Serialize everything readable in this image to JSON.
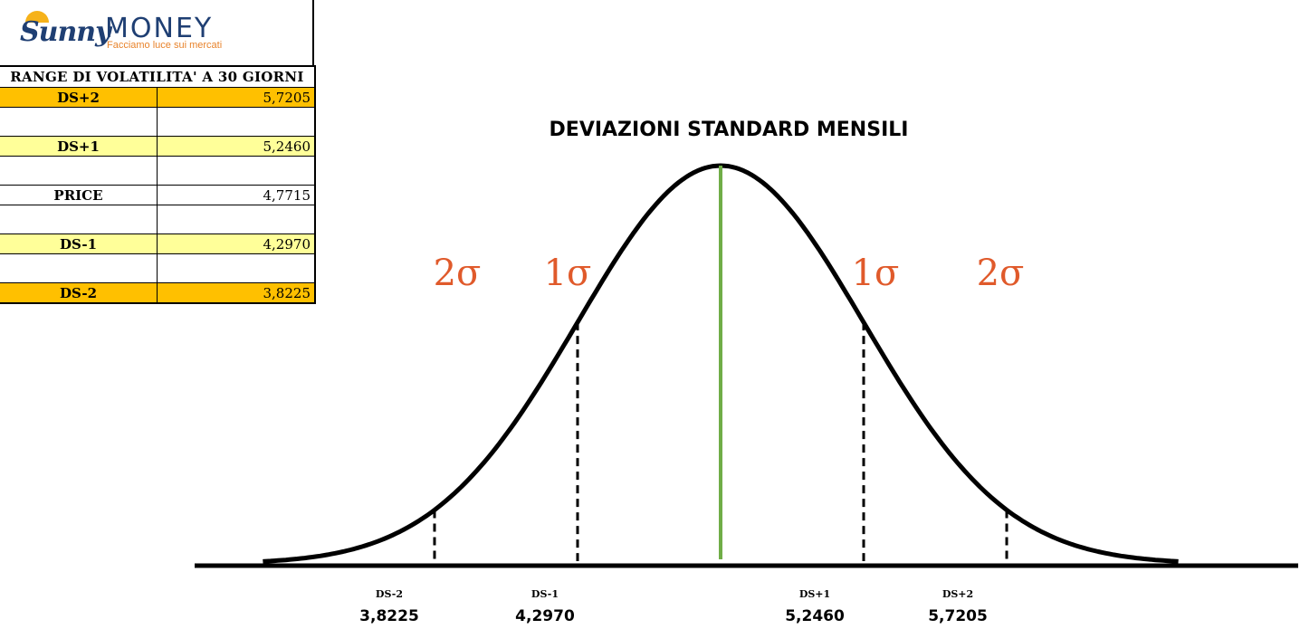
{
  "logo": {
    "word1": "Sunny",
    "word2": "MONEY",
    "tagline": "Facciamo luce sui mercati"
  },
  "table": {
    "header": "RANGE DI VOLATILITA' A 30 GIORNI",
    "rows": [
      {
        "label": "DS+2",
        "value": "5,7205"
      },
      {
        "label": "DS+1",
        "value": "5,2460"
      },
      {
        "label": "PRICE",
        "value": "4,7715"
      },
      {
        "label": "DS-1",
        "value": "4,2970"
      },
      {
        "label": "DS-2",
        "value": "3,8225"
      }
    ]
  },
  "chart_data": {
    "type": "line",
    "title": "DEVIAZIONI STANDARD MENSILI",
    "series": [
      {
        "curve": "normal distribution",
        "mean": 4.7715,
        "sd": 0.4745
      }
    ],
    "center_line": {
      "value": 4.7715,
      "color": "#70ad47"
    },
    "markers": [
      {
        "name": "DS-2",
        "value": 3.8225,
        "label": "3,8225"
      },
      {
        "name": "DS-1",
        "value": 4.297,
        "label": "4,2970"
      },
      {
        "name": "DS+1",
        "value": 5.246,
        "label": "5,2460"
      },
      {
        "name": "DS+2",
        "value": 5.7205,
        "label": "5,7205"
      }
    ],
    "annotations": [
      {
        "text": "2σ",
        "side": "left"
      },
      {
        "text": "1σ",
        "side": "left"
      },
      {
        "text": "1σ",
        "side": "right"
      },
      {
        "text": "2σ",
        "side": "right"
      }
    ],
    "colors": {
      "curve": "#000000",
      "sigma_text": "#e05a2b",
      "center": "#70ad47"
    }
  }
}
